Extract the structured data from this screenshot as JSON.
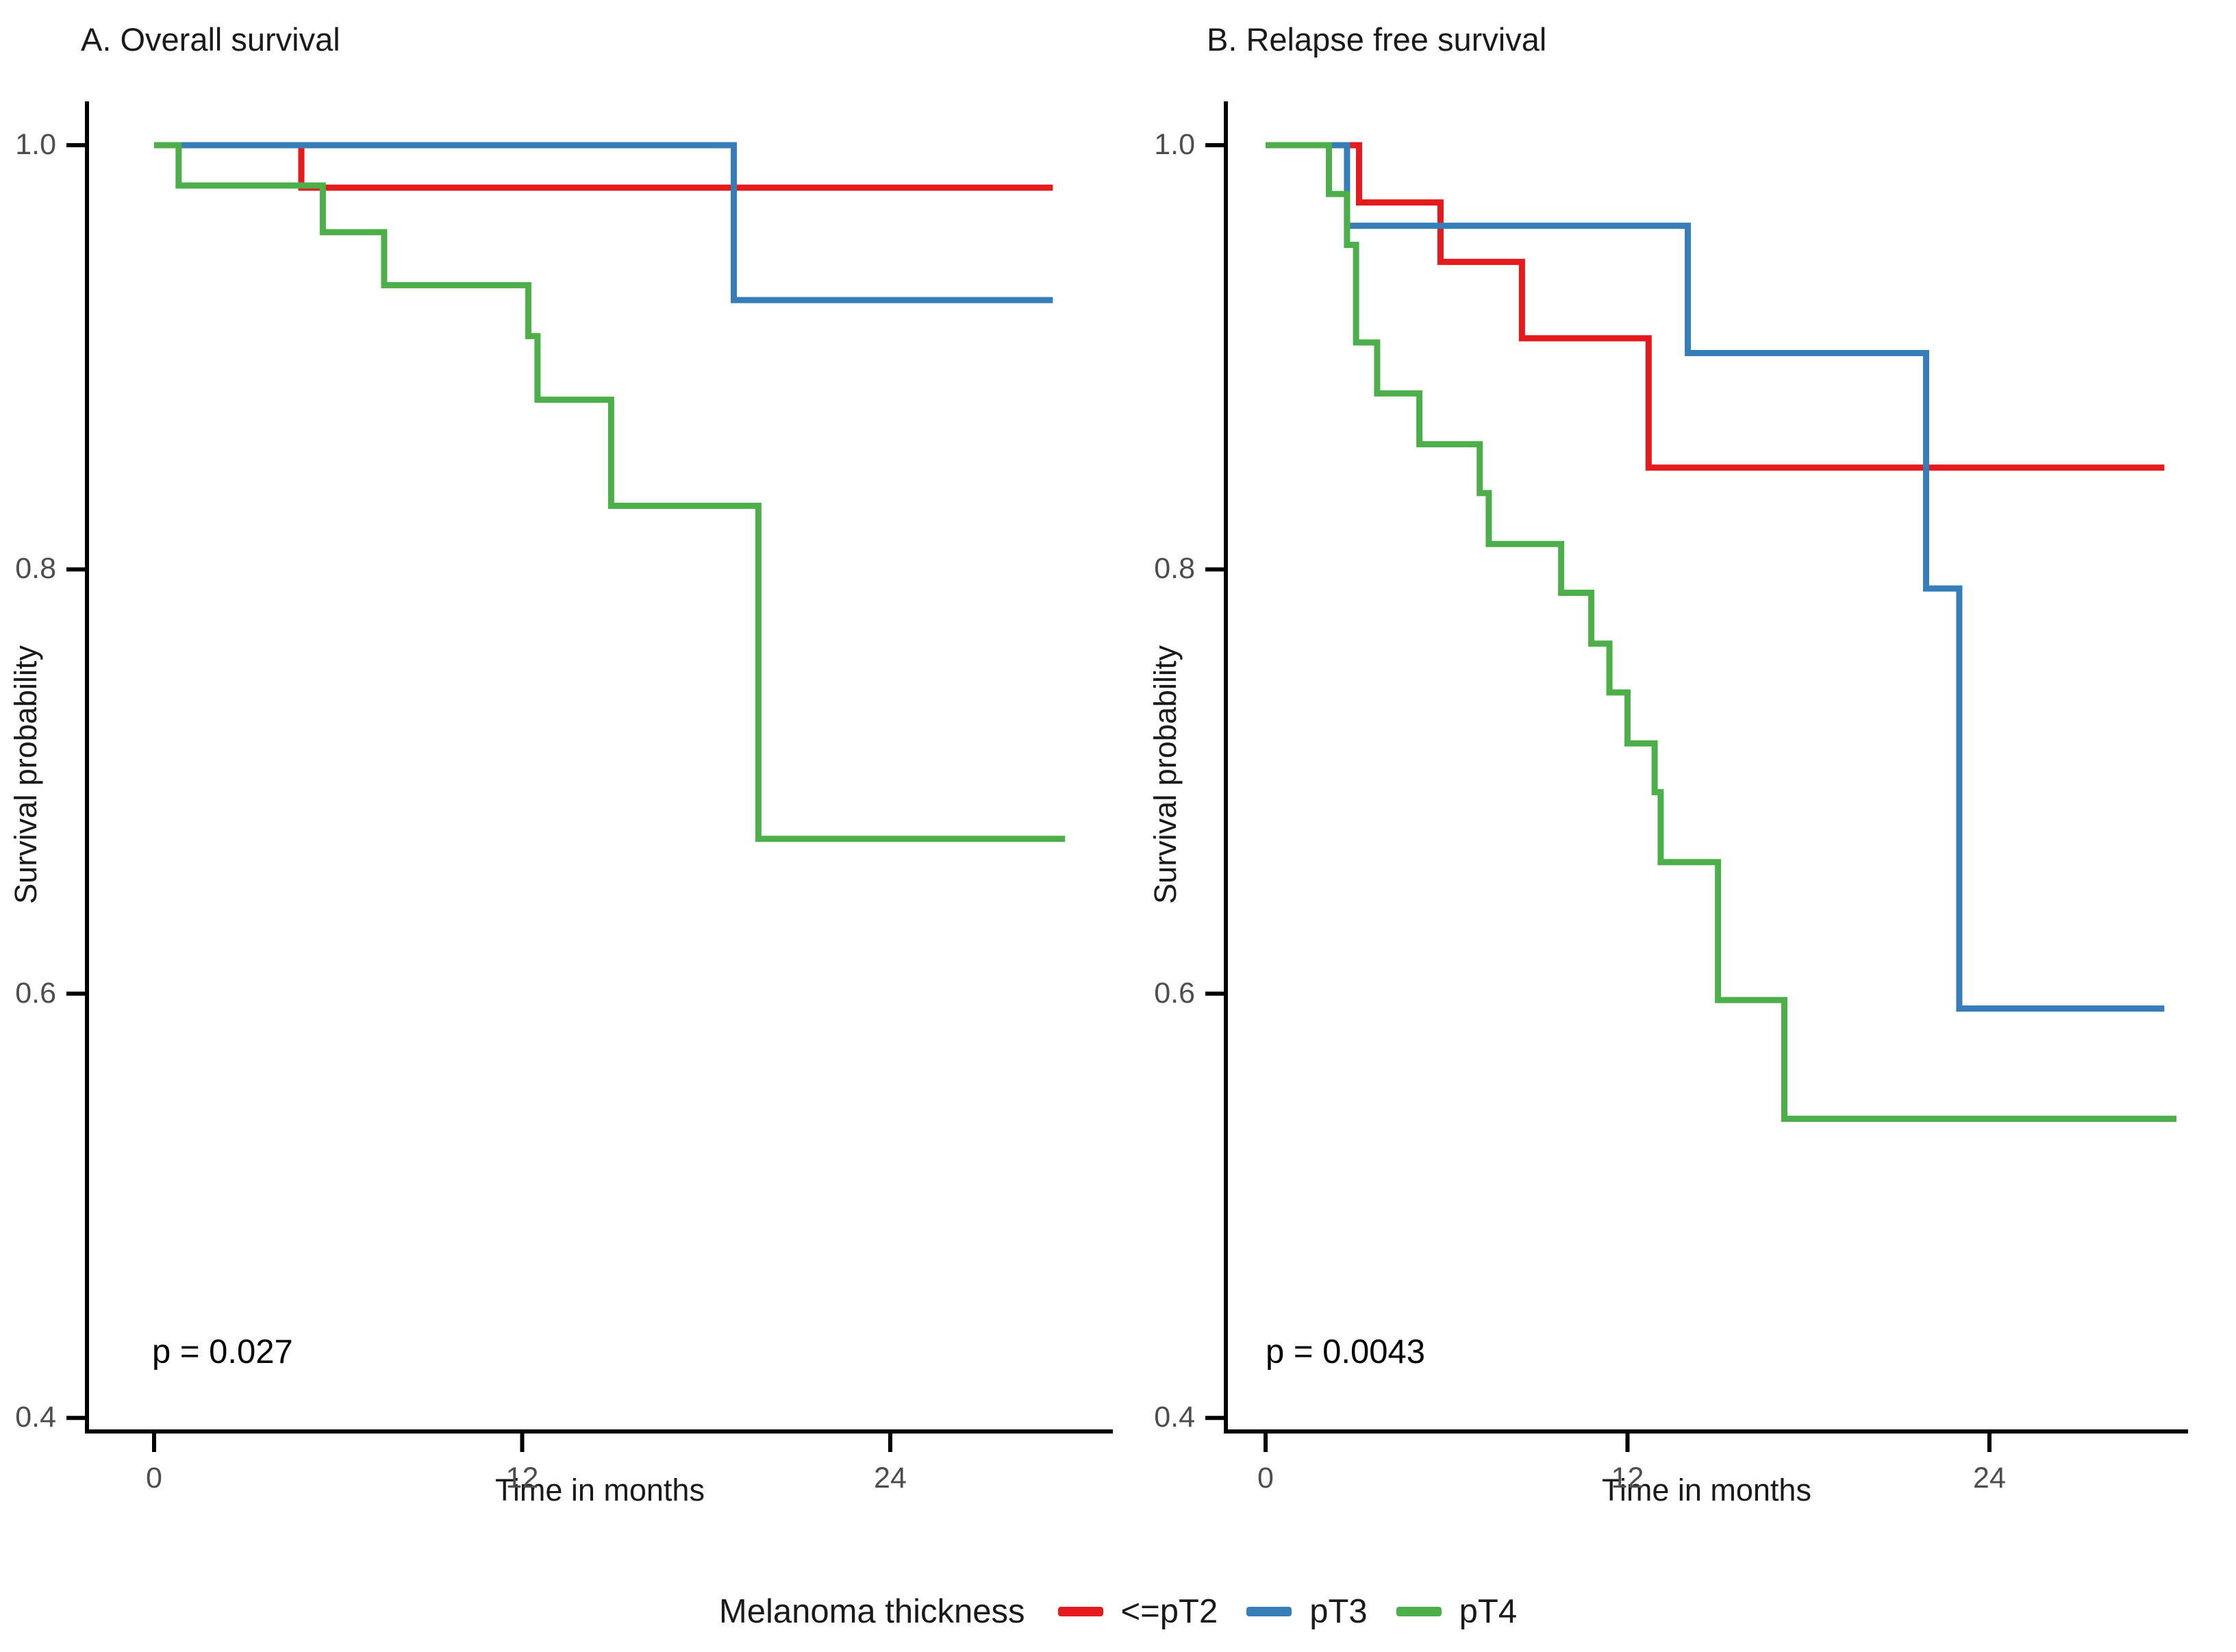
{
  "figure": {
    "ylabel": "Survival probability",
    "xlabel": "Time in months"
  },
  "legend": {
    "title": "Melanoma thickness",
    "items": [
      {
        "label": "<=pT2",
        "color": "#E41A1C"
      },
      {
        "label": "pT3",
        "color": "#377EB8"
      },
      {
        "label": "pT4",
        "color": "#4DAF4A"
      }
    ]
  },
  "chart_data": [
    {
      "id": "overall",
      "type": "line",
      "subtype": "kaplan-meier-step",
      "title": "A. Overall survival",
      "p_value": "p = 0.027",
      "xlabel": "Time in months",
      "ylabel": "Survival probability",
      "xticks": [
        0,
        12,
        24
      ],
      "yticks": [
        1.0,
        0.8,
        0.6,
        0.4
      ],
      "xlim": [
        0,
        30
      ],
      "ylim": [
        0.39,
        1.0
      ],
      "grid": false,
      "legend_position": "bottom",
      "series": [
        {
          "name": "<=pT2",
          "color": "#E41A1C",
          "end_month": 29.3,
          "steps": [
            [
              0,
              1.0
            ],
            [
              4.8,
              0.98
            ]
          ]
        },
        {
          "name": "pT3",
          "color": "#377EB8",
          "end_month": 29.3,
          "steps": [
            [
              0,
              1.0
            ],
            [
              18.9,
              0.927
            ]
          ]
        },
        {
          "name": "pT4",
          "color": "#4DAF4A",
          "end_month": 29.7,
          "steps": [
            [
              0,
              1.0
            ],
            [
              0.8,
              0.981
            ],
            [
              5.5,
              0.959
            ],
            [
              7.5,
              0.934
            ],
            [
              12.2,
              0.91
            ],
            [
              12.5,
              0.88
            ],
            [
              14.9,
              0.83
            ],
            [
              19.7,
              0.673
            ]
          ]
        }
      ]
    },
    {
      "id": "relapse-free",
      "type": "line",
      "subtype": "kaplan-meier-step",
      "title": "B. Relapse free survival",
      "p_value": "p = 0.0043",
      "xlabel": "Time in months",
      "ylabel": "Survival probability",
      "xticks": [
        0,
        12,
        24
      ],
      "yticks": [
        1.0,
        0.8,
        0.6,
        0.4
      ],
      "xlim": [
        0,
        30
      ],
      "ylim": [
        0.39,
        1.0
      ],
      "grid": false,
      "legend_position": "bottom",
      "series": [
        {
          "name": "<=pT2",
          "color": "#E41A1C",
          "end_month": 29.8,
          "steps": [
            [
              0,
              1.0
            ],
            [
              3.1,
              0.973
            ],
            [
              5.8,
              0.945
            ],
            [
              8.5,
              0.909
            ],
            [
              12.7,
              0.848
            ]
          ]
        },
        {
          "name": "pT3",
          "color": "#377EB8",
          "end_month": 29.8,
          "steps": [
            [
              0,
              1.0
            ],
            [
              2.7,
              0.962
            ],
            [
              14.0,
              0.902
            ],
            [
              21.9,
              0.791
            ],
            [
              23.0,
              0.593
            ]
          ]
        },
        {
          "name": "pT4",
          "color": "#4DAF4A",
          "end_month": 30.2,
          "steps": [
            [
              0,
              1.0
            ],
            [
              2.1,
              0.977
            ],
            [
              2.7,
              0.953
            ],
            [
              3.0,
              0.907
            ],
            [
              3.7,
              0.883
            ],
            [
              5.1,
              0.859
            ],
            [
              7.1,
              0.836
            ],
            [
              7.4,
              0.812
            ],
            [
              9.8,
              0.789
            ],
            [
              10.8,
              0.765
            ],
            [
              11.4,
              0.742
            ],
            [
              12.0,
              0.718
            ],
            [
              12.9,
              0.695
            ],
            [
              13.1,
              0.662
            ],
            [
              15.0,
              0.597
            ],
            [
              17.2,
              0.541
            ]
          ]
        }
      ]
    }
  ]
}
